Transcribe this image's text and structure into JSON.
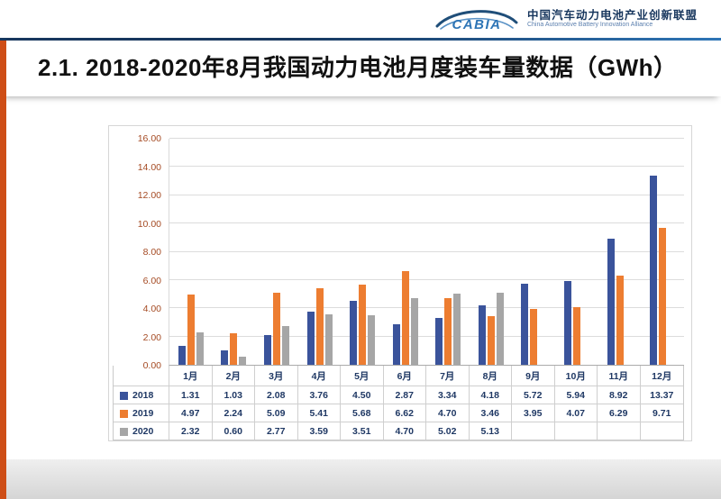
{
  "header": {
    "logo_text": "CABIA",
    "org_cn": "中国汽车动力电池产业创新联盟",
    "org_en": "China Automotive Battery Innovation Alliance"
  },
  "title": "2.1. 2018-2020年8月我国动力电池月度装车量数据（GWh）",
  "colors": {
    "accent_strip": "#CE4E17",
    "divider": "#17375E",
    "axis_label": "#A54B24",
    "table_text": "#1F3864",
    "series_2018": "#3A539B",
    "series_2019": "#ED7D31",
    "series_2020": "#A6A6A6"
  },
  "chart_data": {
    "type": "bar",
    "title": "2018-2020年8月我国动力电池月度装车量数据（GWh）",
    "categories": [
      "1月",
      "2月",
      "3月",
      "4月",
      "5月",
      "6月",
      "7月",
      "8月",
      "9月",
      "10月",
      "11月",
      "12月"
    ],
    "series": [
      {
        "name": "2018",
        "color": "#3A539B",
        "values": [
          1.31,
          1.03,
          2.08,
          3.76,
          4.5,
          2.87,
          3.34,
          4.18,
          5.72,
          5.94,
          8.92,
          13.37
        ]
      },
      {
        "name": "2019",
        "color": "#ED7D31",
        "values": [
          4.97,
          2.24,
          5.09,
          5.41,
          5.68,
          6.62,
          4.7,
          3.46,
          3.95,
          4.07,
          6.29,
          9.71
        ]
      },
      {
        "name": "2020",
        "color": "#A6A6A6",
        "values": [
          2.32,
          0.6,
          2.77,
          3.59,
          3.51,
          4.7,
          5.02,
          5.13,
          null,
          null,
          null,
          null
        ]
      }
    ],
    "ylim": [
      0,
      16
    ],
    "ytick_step": 2,
    "ytick_format": "0.00",
    "value_format": "0.00",
    "grid": true,
    "legend_position": "table-left"
  }
}
